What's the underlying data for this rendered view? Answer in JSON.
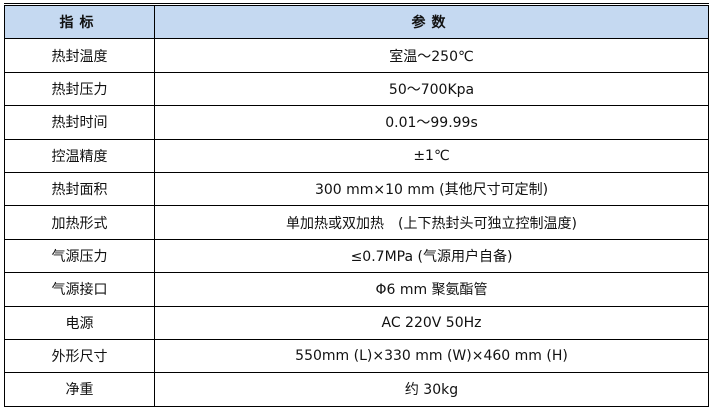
{
  "header": {
    "col1": "指标",
    "col2": "参数",
    "bg_color": "#c5d9f1"
  },
  "rows": [
    {
      "name": "热封温度",
      "value": "室温～250℃"
    },
    {
      "name": "热封压力",
      "value": "50～700Kpa"
    },
    {
      "name": "热封时间",
      "value": "0.01～99.99s"
    },
    {
      "name": "控温精度",
      "value": "±1℃"
    },
    {
      "name": "热封面积",
      "value": "300 mm×10 mm (其他尺寸可定制)"
    },
    {
      "name": "加热形式",
      "value": "单加热或双加热　(上下热封头可独立控制温度)"
    },
    {
      "name": "气源压力",
      "value": "≤0.7MPa (气源用户自备)"
    },
    {
      "name": "气源接口",
      "value": "Φ6 mm 聚氨酯管"
    },
    {
      "name": "电源",
      "value": "AC 220V 50Hz"
    },
    {
      "name": "外形尺寸",
      "value": "550mm (L)×330 mm (W)×460 mm (H)"
    },
    {
      "name": "净重",
      "value": "约 30kg"
    }
  ]
}
